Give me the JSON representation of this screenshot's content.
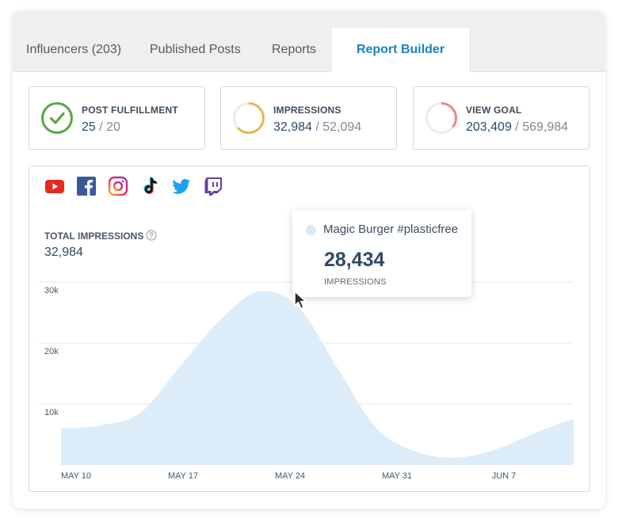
{
  "tabs": [
    {
      "label": "Influencers (203)"
    },
    {
      "label": "Published Posts"
    },
    {
      "label": "Reports"
    },
    {
      "label": "Report Builder",
      "active": true
    }
  ],
  "stats": {
    "fulfillment": {
      "label": "POST FULFILLMENT",
      "value": "25",
      "sep": " / ",
      "goal": "20",
      "color": "#5aa642",
      "icon": "checkmark-icon"
    },
    "impressions": {
      "label": "IMPRESSIONS",
      "value": "32,984",
      "sep": " / ",
      "goal": "52,094",
      "color": "#e9b64f",
      "progress": 0.633
    },
    "view_goal": {
      "label": "VIEW GOAL",
      "value": "203,409",
      "sep": " / ",
      "goal": "569,984",
      "color": "#ef8583",
      "progress": 0.357
    }
  },
  "social_icons": [
    "youtube-icon",
    "facebook-icon",
    "instagram-icon",
    "tiktok-icon",
    "twitter-icon",
    "twitch-icon"
  ],
  "total_impressions": {
    "label": "TOTAL IMPRESSIONS",
    "value": "32,984"
  },
  "tooltip": {
    "series": "Magic Burger #plasticfree",
    "value": "28,434",
    "unit": "IMPRESSIONS"
  },
  "colors": {
    "accent": "#1a82c4",
    "area_fill": "#dcecf9"
  },
  "chart_data": {
    "type": "area",
    "x": [
      "May 10",
      "May 13",
      "May 16",
      "May 19",
      "May 21",
      "May 23",
      "May 25",
      "May 27",
      "May 29",
      "May 31",
      "Jun 3",
      "Jun 6",
      "Jun 9",
      "Jun 11"
    ],
    "values": [
      6000,
      6500,
      8500,
      16000,
      23500,
      28434,
      26000,
      16000,
      6000,
      2200,
      1200,
      2500,
      5200,
      7600
    ],
    "x_tick_labels": [
      "MAY 10",
      "MAY 17",
      "MAY 24",
      "MAY 31",
      "JUN 7"
    ],
    "y_tick_labels": [
      "10k",
      "20k",
      "30k"
    ],
    "y_ticks": [
      10000,
      20000,
      30000
    ],
    "ylim": [
      0,
      30000
    ],
    "grid": true
  }
}
